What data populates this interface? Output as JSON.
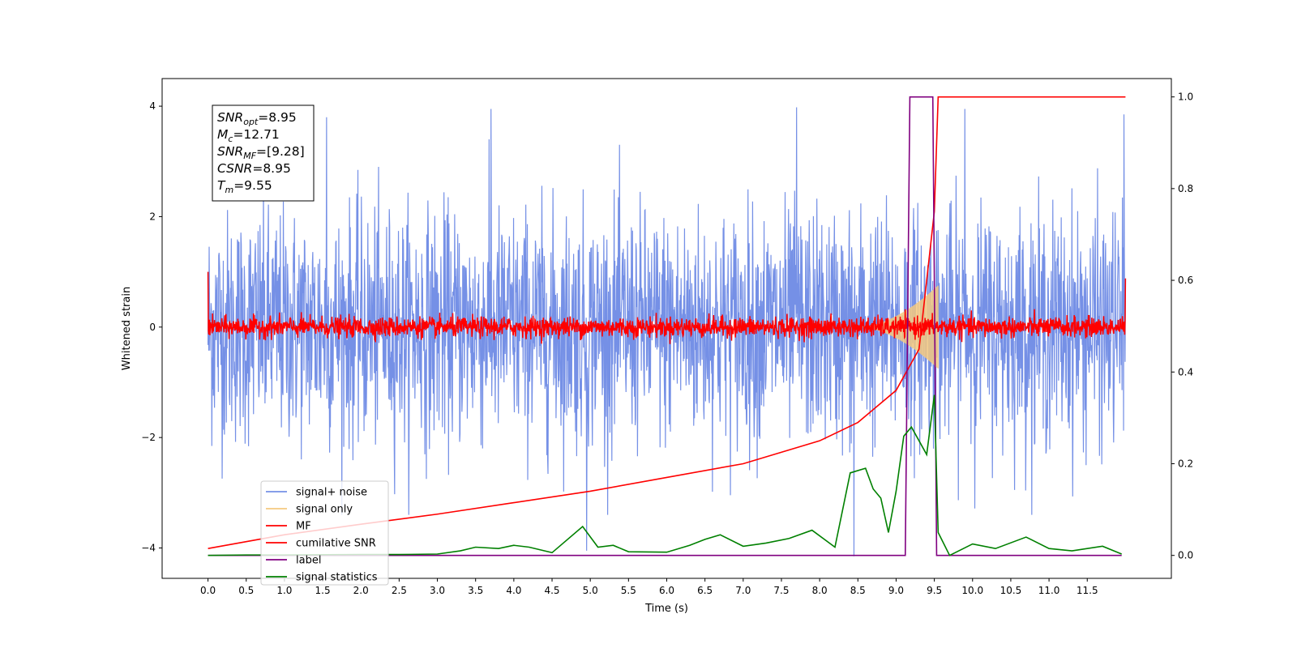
{
  "chart_data": {
    "type": "line",
    "xlabel": "Time (s)",
    "ylabel": "Whitened strain",
    "xlim": [
      -0.6,
      12.6
    ],
    "ylim": [
      -4.55,
      4.5
    ],
    "y2lim": [
      -0.05,
      1.04
    ],
    "x_ticks": [
      "0.0",
      "0.5",
      "1.0",
      "1.5",
      "2.0",
      "2.5",
      "3.0",
      "3.5",
      "4.0",
      "4.5",
      "5.0",
      "5.5",
      "6.0",
      "6.5",
      "7.0",
      "7.5",
      "8.0",
      "8.5",
      "9.0",
      "9.5",
      "10.0",
      "10.5",
      "11.0",
      "11.5"
    ],
    "y_ticks": [
      "−4",
      "−2",
      "0",
      "2",
      "4"
    ],
    "y2_ticks": [
      "0.0",
      "0.2",
      "0.4",
      "0.6",
      "0.8",
      "1.0"
    ],
    "stats_box": {
      "snr_opt": {
        "main": "SNR",
        "sub": "opt",
        "value": "=8.95"
      },
      "mc": {
        "main": "M",
        "sub": "c",
        "value": "=12.71"
      },
      "snr_mf": {
        "main": "SNR",
        "sub": "MF",
        "value": "=[9.28]"
      },
      "csnr": {
        "main": "CSNR",
        "value": "=8.95"
      },
      "tm": {
        "main": "T",
        "sub": "m",
        "value": "=9.55"
      }
    },
    "legend": {
      "placement": "lower-left",
      "entries": [
        {
          "label": "signal+ noise",
          "color": "#7590e6"
        },
        {
          "label": "signal only",
          "color": "#f5c97f"
        },
        {
          "label": "MF",
          "color": "#ff0000"
        },
        {
          "label": "cumilative SNR",
          "color": "#ff0000"
        },
        {
          "label": "label",
          "color": "#800080"
        },
        {
          "label": "signal statistics",
          "color": "#008000"
        }
      ]
    },
    "series": [
      {
        "name": "signal+ noise",
        "axis": "left",
        "color": "#7590e6",
        "description_of_form": "noise band",
        "x_range": [
          0.0,
          12.0
        ],
        "typical_band": [
          -2.3,
          2.3
        ],
        "peaks": [
          {
            "x": 1.55,
            "y": 3.8
          },
          {
            "x": 3.7,
            "y": 3.95
          },
          {
            "x": 7.7,
            "y": 3.98
          },
          {
            "x": 9.9,
            "y": 3.95
          },
          {
            "x": 11.98,
            "y": 3.85
          },
          {
            "x": 4.95,
            "y": -4.05
          },
          {
            "x": 8.45,
            "y": -4.15
          }
        ]
      },
      {
        "name": "signal only",
        "axis": "left",
        "color": "#f5c97f",
        "description_of_form": "chirp",
        "x_range": [
          8.5,
          9.55
        ],
        "peak_amplitude": 0.75
      },
      {
        "name": "MF",
        "axis": "left",
        "color": "#ff0000",
        "description_of_form": "noise band",
        "x_range": [
          0.0,
          12.0
        ],
        "typical_band": [
          -0.2,
          0.2
        ],
        "edge_values": {
          "start": 1.0,
          "end": 0.88
        }
      },
      {
        "name": "cumilative SNR",
        "axis": "right",
        "color": "#ff0000",
        "x": [
          0.0,
          1.0,
          2.0,
          3.0,
          4.0,
          5.0,
          6.0,
          7.0,
          8.0,
          8.5,
          9.0,
          9.3,
          9.5,
          9.55,
          12.0
        ],
        "y": [
          0.015,
          0.045,
          0.068,
          0.09,
          0.115,
          0.14,
          0.17,
          0.2,
          0.25,
          0.29,
          0.36,
          0.45,
          0.75,
          1.0,
          1.0
        ]
      },
      {
        "name": "label",
        "axis": "right",
        "color": "#800080",
        "x": [
          0.0,
          9.12,
          9.18,
          9.48,
          9.53,
          11.95
        ],
        "y": [
          0.0,
          0.0,
          1.0,
          1.0,
          0.0,
          0.0
        ]
      },
      {
        "name": "signal statistics",
        "axis": "right",
        "color": "#008000",
        "x": [
          0.0,
          0.5,
          1.0,
          2.0,
          2.5,
          3.0,
          3.3,
          3.5,
          3.8,
          4.0,
          4.2,
          4.5,
          4.9,
          5.1,
          5.3,
          5.5,
          6.0,
          6.3,
          6.5,
          6.7,
          7.0,
          7.3,
          7.6,
          7.9,
          8.2,
          8.4,
          8.6,
          8.7,
          8.8,
          8.9,
          9.0,
          9.1,
          9.2,
          9.3,
          9.4,
          9.5,
          9.55,
          9.7,
          10.0,
          10.3,
          10.7,
          11.0,
          11.3,
          11.7,
          11.95
        ],
        "y": [
          0.0,
          0.001,
          0.001,
          0.002,
          0.002,
          0.003,
          0.01,
          0.018,
          0.015,
          0.022,
          0.018,
          0.006,
          0.063,
          0.018,
          0.022,
          0.008,
          0.007,
          0.022,
          0.035,
          0.045,
          0.02,
          0.027,
          0.037,
          0.055,
          0.018,
          0.18,
          0.19,
          0.145,
          0.125,
          0.05,
          0.14,
          0.26,
          0.28,
          0.25,
          0.22,
          0.35,
          0.05,
          0.0,
          0.025,
          0.015,
          0.04,
          0.015,
          0.01,
          0.02,
          0.003
        ]
      }
    ]
  }
}
